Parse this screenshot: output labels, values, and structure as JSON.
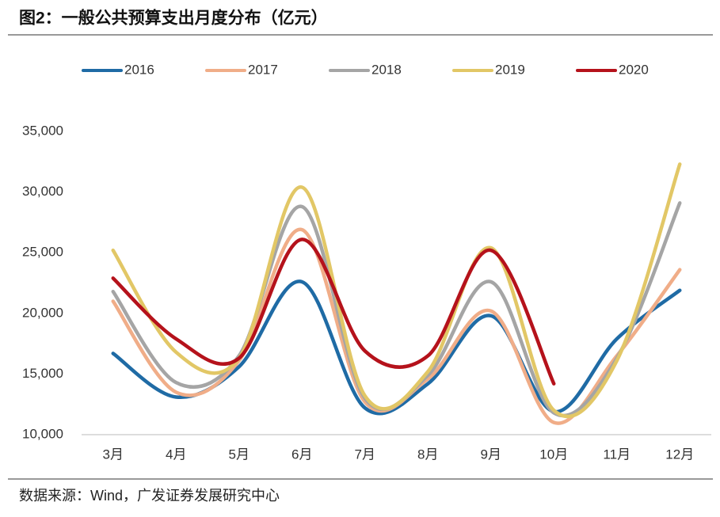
{
  "chart_data": {
    "type": "line",
    "title": "图2：一般公共预算支出月度分布（亿元）",
    "source": "数据来源：Wind，广发证券发展研究中心",
    "categories": [
      "3月",
      "4月",
      "5月",
      "6月",
      "7月",
      "8月",
      "9月",
      "10月",
      "11月",
      "12月"
    ],
    "series": [
      {
        "name": "2016",
        "color": "#1f6ba5",
        "values": [
          16700,
          13100,
          15600,
          22600,
          12200,
          14200,
          19800,
          11900,
          17900,
          21900
        ]
      },
      {
        "name": "2017",
        "color": "#f0ad88",
        "values": [
          21000,
          13500,
          16100,
          26900,
          12700,
          14600,
          20200,
          11000,
          16500,
          23600
        ]
      },
      {
        "name": "2018",
        "color": "#a5a5a5",
        "values": [
          21800,
          14300,
          16500,
          28800,
          13000,
          14900,
          22600,
          11800,
          16300,
          29100
        ]
      },
      {
        "name": "2019",
        "color": "#e2c766",
        "values": [
          25200,
          16800,
          16300,
          30400,
          13200,
          15200,
          25400,
          12000,
          16100,
          32300
        ]
      },
      {
        "name": "2020",
        "color": "#b5121b",
        "values": [
          22900,
          17900,
          16300,
          26100,
          16900,
          16500,
          25200,
          14200,
          null,
          null
        ]
      }
    ],
    "ylim": [
      10000,
      35000
    ],
    "yticks": [
      {
        "value": 10000,
        "label": "10,000"
      },
      {
        "value": 15000,
        "label": "15,000"
      },
      {
        "value": 20000,
        "label": "20,000"
      },
      {
        "value": 25000,
        "label": "25,000"
      },
      {
        "value": 30000,
        "label": "30,000"
      },
      {
        "value": 35000,
        "label": "35,000"
      }
    ],
    "grid": false,
    "legend": "top"
  }
}
